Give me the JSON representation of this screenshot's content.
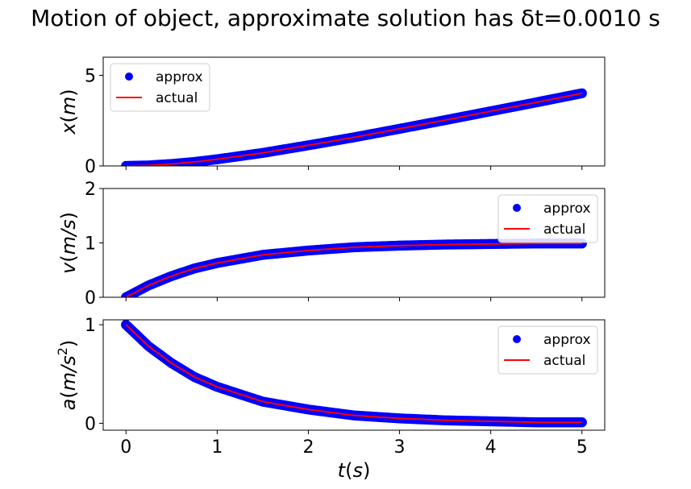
{
  "title": "Motion of object, approximate solution has δt=0.0010 s",
  "colors": {
    "approx": "#0000ff",
    "actual": "#ff0000",
    "axes": "#000000"
  },
  "chart_data": [
    {
      "type": "line",
      "ylabel_var": "x",
      "ylabel_unit": "m",
      "ylabel_unit_sup": "",
      "xlim": [
        -0.25,
        5.25
      ],
      "ylim": [
        0,
        6
      ],
      "yticks": [
        0,
        5
      ],
      "xticks": [
        0,
        1,
        2,
        3,
        4,
        5
      ],
      "show_xticklabels": false,
      "legend_loc": "upper-left",
      "legend": [
        "approx",
        "actual"
      ],
      "x": [
        0,
        0.25,
        0.5,
        0.75,
        1,
        1.5,
        2,
        2.5,
        3,
        3.5,
        4,
        4.5,
        5
      ],
      "series": [
        {
          "name": "approx",
          "style": "marker",
          "values": [
            0,
            0.03,
            0.11,
            0.22,
            0.37,
            0.72,
            1.14,
            1.58,
            2.05,
            2.53,
            3.02,
            3.51,
            4.01
          ]
        },
        {
          "name": "actual",
          "style": "line",
          "values": [
            0,
            0.03,
            0.11,
            0.22,
            0.37,
            0.72,
            1.14,
            1.58,
            2.05,
            2.53,
            3.02,
            3.51,
            4.01
          ]
        }
      ],
      "grid": false
    },
    {
      "type": "line",
      "ylabel_var": "v",
      "ylabel_unit": "m/s",
      "ylabel_unit_sup": "",
      "xlim": [
        -0.25,
        5.25
      ],
      "ylim": [
        0,
        2
      ],
      "yticks": [
        0,
        1,
        2
      ],
      "xticks": [
        0,
        1,
        2,
        3,
        4,
        5
      ],
      "show_xticklabels": false,
      "legend_loc": "upper-right",
      "legend": [
        "approx",
        "actual"
      ],
      "x": [
        0,
        0.25,
        0.5,
        0.75,
        1,
        1.5,
        2,
        2.5,
        3,
        3.5,
        4,
        4.5,
        5
      ],
      "series": [
        {
          "name": "approx",
          "style": "marker",
          "values": [
            0,
            0.22,
            0.39,
            0.53,
            0.63,
            0.78,
            0.86,
            0.92,
            0.95,
            0.97,
            0.98,
            0.99,
            0.99
          ]
        },
        {
          "name": "actual",
          "style": "line",
          "values": [
            0,
            0.22,
            0.39,
            0.53,
            0.63,
            0.78,
            0.86,
            0.92,
            0.95,
            0.97,
            0.98,
            0.99,
            0.99
          ]
        }
      ],
      "grid": false
    },
    {
      "type": "line",
      "ylabel_var": "a",
      "ylabel_unit": "m/s",
      "ylabel_unit_sup": "2",
      "xlabel_var": "t",
      "xlabel_unit": "s",
      "xlim": [
        -0.25,
        5.25
      ],
      "ylim": [
        -0.07,
        1.05
      ],
      "yticks": [
        0,
        1
      ],
      "xticks": [
        0,
        1,
        2,
        3,
        4,
        5
      ],
      "show_xticklabels": true,
      "legend_loc": "upper-right",
      "legend": [
        "approx",
        "actual"
      ],
      "x": [
        0,
        0.25,
        0.5,
        0.75,
        1,
        1.5,
        2,
        2.5,
        3,
        3.5,
        4,
        4.5,
        5
      ],
      "series": [
        {
          "name": "approx",
          "style": "marker",
          "values": [
            1,
            0.78,
            0.61,
            0.47,
            0.37,
            0.22,
            0.14,
            0.08,
            0.05,
            0.03,
            0.02,
            0.01,
            0.01
          ]
        },
        {
          "name": "actual",
          "style": "line",
          "values": [
            1,
            0.78,
            0.61,
            0.47,
            0.37,
            0.22,
            0.14,
            0.08,
            0.05,
            0.03,
            0.02,
            0.01,
            0.01
          ]
        }
      ],
      "grid": false
    }
  ]
}
